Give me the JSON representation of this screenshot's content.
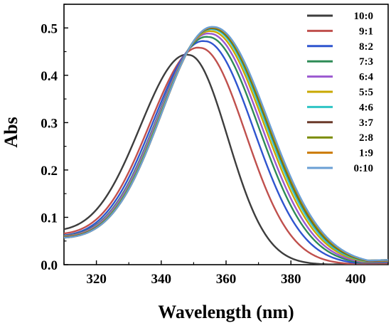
{
  "chart_data": {
    "type": "line",
    "title": "",
    "xlabel": "Wavelength (nm)",
    "ylabel": "Abs",
    "xlim": [
      310,
      410
    ],
    "ylim": [
      0,
      0.55
    ],
    "xticks": [
      320,
      340,
      360,
      380,
      400
    ],
    "yticks": [
      0.0,
      0.1,
      0.2,
      0.3,
      0.4,
      0.5
    ],
    "xtick_labels": [
      "320",
      "340",
      "360",
      "380",
      "400"
    ],
    "ytick_labels": [
      "0.0",
      "0.1",
      "0.2",
      "0.3",
      "0.4",
      "0.5"
    ],
    "grid": false,
    "legend_position": "top-right",
    "series": [
      {
        "name": "10:0",
        "color": "#3d3d3d",
        "peak_x": 348.5,
        "peak_y": 0.443,
        "left_width": 15.0,
        "right_width": 12.0,
        "y_at_310": 0.075,
        "y_at_410": 0.001
      },
      {
        "name": "9:1",
        "color": "#c0504d",
        "peak_x": 352.0,
        "peak_y": 0.458,
        "left_width": 15.5,
        "right_width": 14.0,
        "y_at_310": 0.066,
        "y_at_410": 0.003
      },
      {
        "name": "8:2",
        "color": "#2f55cf",
        "peak_x": 353.5,
        "peak_y": 0.472,
        "left_width": 15.8,
        "right_width": 15.0,
        "y_at_310": 0.062,
        "y_at_410": 0.005
      },
      {
        "name": "7:3",
        "color": "#2e8b57",
        "peak_x": 354.5,
        "peak_y": 0.481,
        "left_width": 15.8,
        "right_width": 15.5,
        "y_at_310": 0.061,
        "y_at_410": 0.006
      },
      {
        "name": "6:4",
        "color": "#9b59d0",
        "peak_x": 355.0,
        "peak_y": 0.488,
        "left_width": 15.9,
        "right_width": 15.8,
        "y_at_310": 0.06,
        "y_at_410": 0.007
      },
      {
        "name": "5:5",
        "color": "#c9a800",
        "peak_x": 355.5,
        "peak_y": 0.493,
        "left_width": 15.9,
        "right_width": 16.1,
        "y_at_310": 0.059,
        "y_at_410": 0.008
      },
      {
        "name": "4:6",
        "color": "#2ec4c4",
        "peak_x": 355.8,
        "peak_y": 0.497,
        "left_width": 16.0,
        "right_width": 16.3,
        "y_at_310": 0.058,
        "y_at_410": 0.009
      },
      {
        "name": "3:7",
        "color": "#6b3a2a",
        "peak_x": 356.0,
        "peak_y": 0.499,
        "left_width": 16.0,
        "right_width": 16.5,
        "y_at_310": 0.058,
        "y_at_410": 0.009
      },
      {
        "name": "2:8",
        "color": "#7a8c00",
        "peak_x": 356.0,
        "peak_y": 0.5,
        "left_width": 16.0,
        "right_width": 16.6,
        "y_at_310": 0.057,
        "y_at_410": 0.01
      },
      {
        "name": "1:9",
        "color": "#cc7a00",
        "peak_x": 356.2,
        "peak_y": 0.501,
        "left_width": 16.0,
        "right_width": 16.7,
        "y_at_310": 0.057,
        "y_at_410": 0.01
      },
      {
        "name": "0:10",
        "color": "#6a9fd4",
        "peak_x": 356.2,
        "peak_y": 0.502,
        "left_width": 16.0,
        "right_width": 16.8,
        "y_at_310": 0.057,
        "y_at_410": 0.01
      }
    ]
  }
}
